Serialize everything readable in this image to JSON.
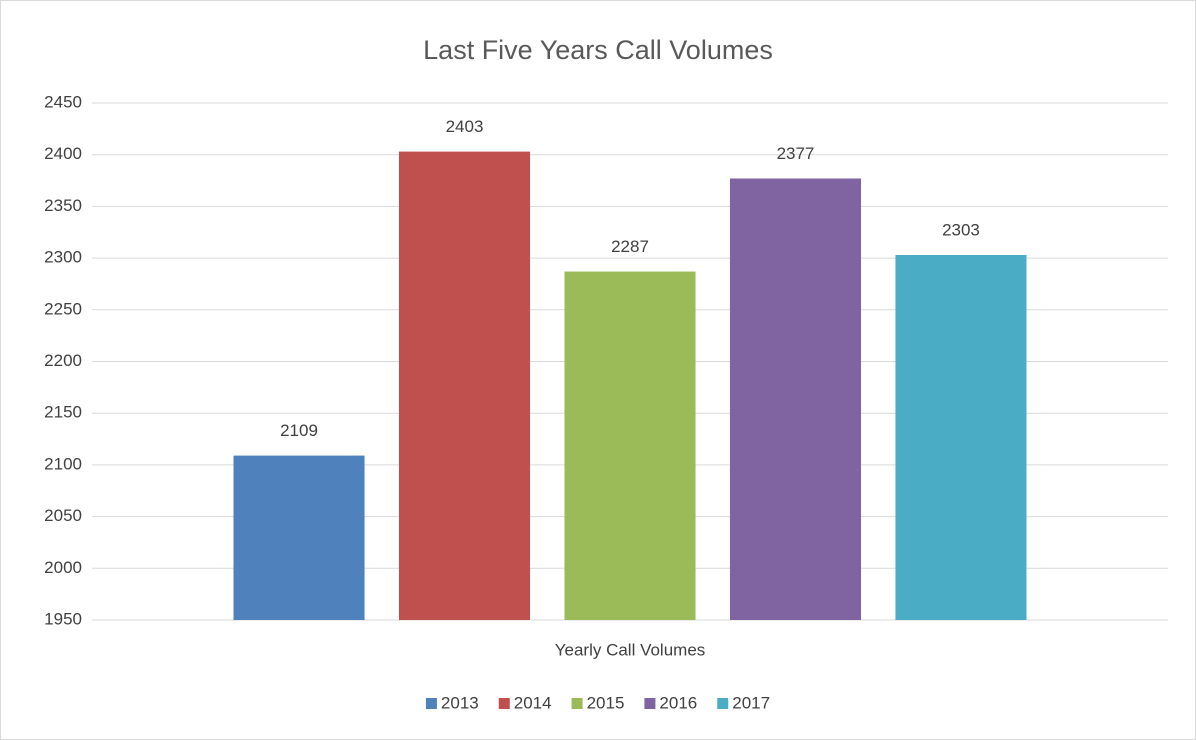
{
  "chart_data": {
    "type": "bar",
    "title": "Last Five Years Call Volumes",
    "categories": [
      "Yearly Call Volumes"
    ],
    "series": [
      {
        "name": "2013",
        "color": "#4f81bd",
        "values": [
          2109
        ]
      },
      {
        "name": "2014",
        "color": "#c0504d",
        "values": [
          2403
        ]
      },
      {
        "name": "2015",
        "color": "#9bbb59",
        "values": [
          2287
        ]
      },
      {
        "name": "2016",
        "color": "#8064a2",
        "values": [
          2377
        ]
      },
      {
        "name": "2017",
        "color": "#4bacc6",
        "values": [
          2303
        ]
      }
    ],
    "ylim": [
      1950,
      2450
    ],
    "yticks": [
      1950,
      2000,
      2050,
      2100,
      2150,
      2200,
      2250,
      2300,
      2350,
      2400,
      2450
    ],
    "grid": true,
    "legend": "bottom",
    "data_labels": true
  }
}
